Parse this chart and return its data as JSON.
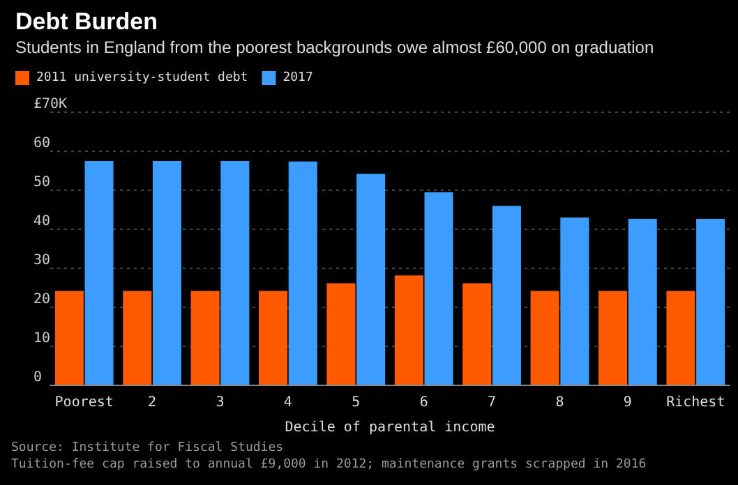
{
  "chart_data": {
    "type": "bar",
    "title": "Debt Burden",
    "subtitle": "Students in England from the poorest backgrounds owe almost £60,000 on graduation",
    "xlabel": "Decile of parental income",
    "categories": [
      "Poorest",
      "2",
      "3",
      "4",
      "5",
      "6",
      "7",
      "8",
      "9",
      "Richest"
    ],
    "series": [
      {
        "name": "2011 university-student debt",
        "color": "#ff5a00",
        "values": [
          24,
          24,
          24,
          24,
          26,
          28,
          26,
          24,
          24,
          24
        ]
      },
      {
        "name": "2017",
        "color": "#3d9dff",
        "values": [
          57.3,
          57.3,
          57.3,
          57.2,
          54,
          49.3,
          45.8,
          42.8,
          42.5,
          42.5
        ]
      }
    ],
    "ylim": [
      0,
      70
    ],
    "yticks": [
      0,
      10,
      20,
      30,
      40,
      50,
      60,
      {
        "value": 70,
        "label": "£70K"
      }
    ],
    "grid": "y",
    "legend": "top left",
    "annotations": [
      "Source: Institute for Fiscal Studies",
      "Tuition-fee cap raised to annual £9,000 in 2012; maintenance grants scrapped in 2016"
    ]
  }
}
